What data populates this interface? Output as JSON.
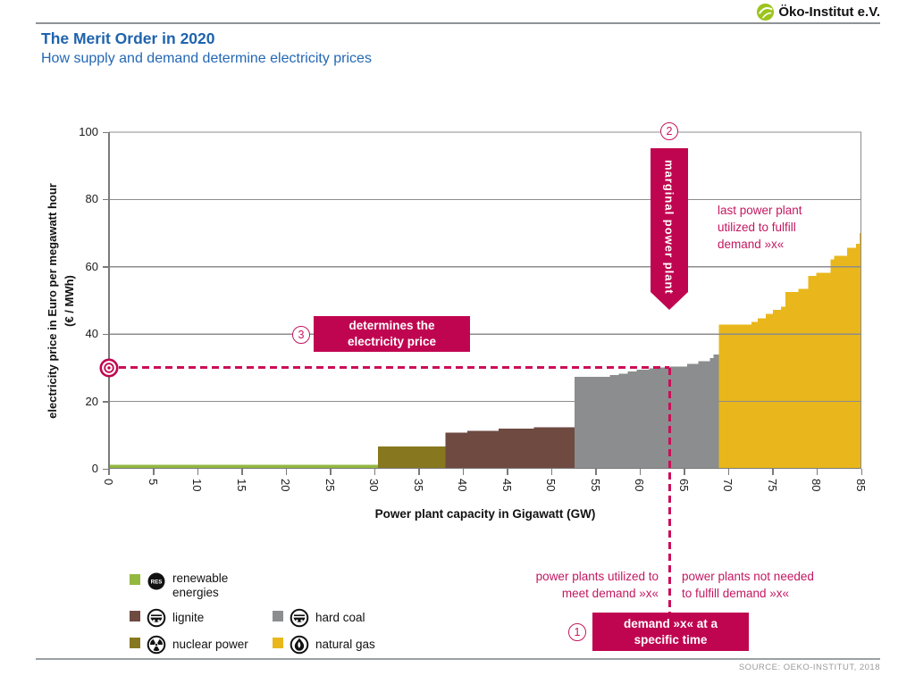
{
  "header": {
    "title": "The Merit Order in 2020",
    "subtitle": "How supply and demand determine electricity prices",
    "logo_text": "Öko-Institut e.V."
  },
  "footer": {
    "source": "SOURCE: OEKO-INSTITUT, 2018"
  },
  "colors": {
    "accent_fill": "#c00550",
    "accent_text": "#c31760",
    "accent_dash": "#cc0e58",
    "title_blue": "#1f63ad",
    "renewables": "#93b83f",
    "nuclear": "#87781f",
    "lignite": "#6e4a41",
    "hard_coal": "#8b8d8e",
    "natural_gas": "#e9b71b",
    "grid": "#8c8c8c",
    "logo_green": "#9dc41e"
  },
  "chart_data": {
    "type": "bar",
    "title": "Merit order supply curve",
    "xlabel": "Power plant capacity in Gigawatt (GW)",
    "ylabel_line1": "electricity price in Euro per megawatt hour",
    "ylabel_line2": "(€ / MWh)",
    "xlim": [
      0,
      85
    ],
    "ylim": [
      0,
      100
    ],
    "xticks": [
      0,
      5,
      10,
      15,
      20,
      25,
      30,
      35,
      40,
      45,
      50,
      55,
      60,
      65,
      70,
      75,
      80,
      85
    ],
    "yticks": [
      0,
      20,
      40,
      60,
      80,
      100
    ],
    "grid": "horizontal",
    "demand_gw": 63.3,
    "price_eur_mwh": 30,
    "series": [
      {
        "name": "renewable energies",
        "color": "#93b83f",
        "steps": [
          [
            0,
            30.4,
            1.2
          ]
        ]
      },
      {
        "name": "nuclear power",
        "color": "#87781f",
        "steps": [
          [
            30.4,
            38,
            6.6
          ]
        ]
      },
      {
        "name": "lignite",
        "color": "#6e4a41",
        "steps": [
          [
            38,
            40.5,
            10.7
          ],
          [
            40.5,
            44,
            11.3
          ],
          [
            44,
            48,
            11.9
          ],
          [
            48,
            52.6,
            12.4
          ]
        ]
      },
      {
        "name": "hard coal",
        "color": "#8b8d8e",
        "steps": [
          [
            52.6,
            56.6,
            27.3
          ],
          [
            56.6,
            57.6,
            27.8
          ],
          [
            57.6,
            58.6,
            28.3
          ],
          [
            58.6,
            59.6,
            28.9
          ],
          [
            59.6,
            61,
            29.4
          ],
          [
            61,
            62,
            29.8
          ],
          [
            62,
            63.3,
            30.1
          ],
          [
            63.3,
            65.3,
            30.4
          ],
          [
            65.3,
            66.6,
            31.2
          ],
          [
            66.6,
            67.9,
            32.0
          ],
          [
            67.9,
            68.3,
            32.9
          ],
          [
            68.3,
            68.9,
            33.9
          ]
        ]
      },
      {
        "name": "natural gas",
        "color": "#e9b71b",
        "steps": [
          [
            68.9,
            72.6,
            42.8
          ],
          [
            72.6,
            73.3,
            43.7
          ],
          [
            73.3,
            74.2,
            44.7
          ],
          [
            74.2,
            75,
            46.0
          ],
          [
            75,
            75.9,
            47.2
          ],
          [
            75.9,
            76.4,
            48.1
          ],
          [
            76.4,
            77.9,
            52.5
          ],
          [
            77.9,
            79,
            53.4
          ],
          [
            79,
            79.9,
            57.3
          ],
          [
            79.9,
            81.5,
            58.2
          ],
          [
            81.5,
            81.9,
            62.2
          ],
          [
            81.9,
            83.4,
            63.3
          ],
          [
            83.4,
            84.4,
            65.7
          ],
          [
            84.4,
            84.8,
            66.9
          ],
          [
            84.8,
            85,
            70.0
          ]
        ]
      }
    ]
  },
  "annotations": {
    "marker1": {
      "num": "1",
      "box_line1": "demand »x« at a",
      "box_line2": "specific time"
    },
    "marker2": {
      "num": "2",
      "banner": "marginal power plant"
    },
    "marker3": {
      "num": "3",
      "box_line1": "determines the",
      "box_line2": "electricity price"
    },
    "last_plant": {
      "line1": "last power plant",
      "line2": "utilized to fulfill",
      "line3": "demand »x«"
    },
    "left_note": {
      "line1": "power plants utilized to",
      "line2": "meet demand »x«"
    },
    "right_note": {
      "line1": "power plants not needed",
      "line2": "to fulfill demand »x«"
    }
  },
  "legend": {
    "res_badge": "RES",
    "items": [
      {
        "label": "renewable energies",
        "icon": "res"
      },
      {
        "label": "lignite",
        "icon": "wagon"
      },
      {
        "label": "nuclear power",
        "icon": "radiation"
      },
      {
        "label": "hard coal",
        "icon": "wagon"
      },
      {
        "label": "natural gas",
        "icon": "flame"
      }
    ]
  }
}
